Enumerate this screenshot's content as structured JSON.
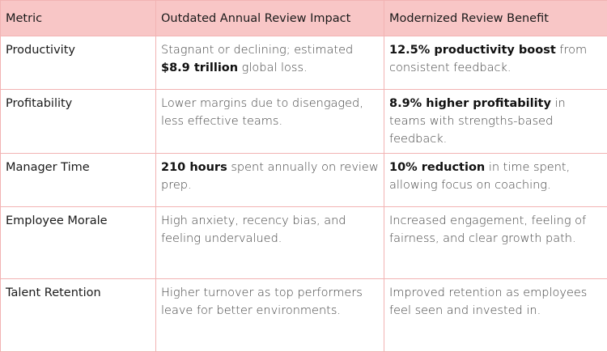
{
  "table": {
    "headers": [
      "Metric",
      "Outdated Annual Review Impact",
      "Modernized Review Benefit"
    ],
    "rows": [
      {
        "metric": "Productivity",
        "outdated": {
          "pre": "Stagnant or declining; estimated ",
          "bold": "$8.9 trillion",
          "post": " global loss."
        },
        "modern": {
          "pre": "",
          "bold": "12.5% productivity boost",
          "post": " from consistent feedback."
        }
      },
      {
        "metric": "Profitability",
        "outdated": {
          "pre": "Lower margins due to disengaged, less effective teams.",
          "bold": "",
          "post": ""
        },
        "modern": {
          "pre": "",
          "bold": "8.9% higher profitability",
          "post": " in teams with strengths-based feedback."
        }
      },
      {
        "metric": "Manager Time",
        "outdated": {
          "pre": "",
          "bold": "210 hours",
          "post": " spent annually on review prep."
        },
        "modern": {
          "pre": "",
          "bold": "10% reduction",
          "post": " in time spent, allowing focus on coaching."
        }
      },
      {
        "metric": "Employee Morale",
        "outdated": {
          "pre": "High anxiety, recency bias, and feeling undervalued.",
          "bold": "",
          "post": ""
        },
        "modern": {
          "pre": "Increased engagement, feeling of fairness, and clear growth path.",
          "bold": "",
          "post": ""
        }
      },
      {
        "metric": "Talent Retention",
        "outdated": {
          "pre": "Higher turnover as top performers leave for better environments.",
          "bold": "",
          "post": ""
        },
        "modern": {
          "pre": "Improved retention as employees feel seen and invested in.",
          "bold": "",
          "post": ""
        }
      }
    ]
  }
}
